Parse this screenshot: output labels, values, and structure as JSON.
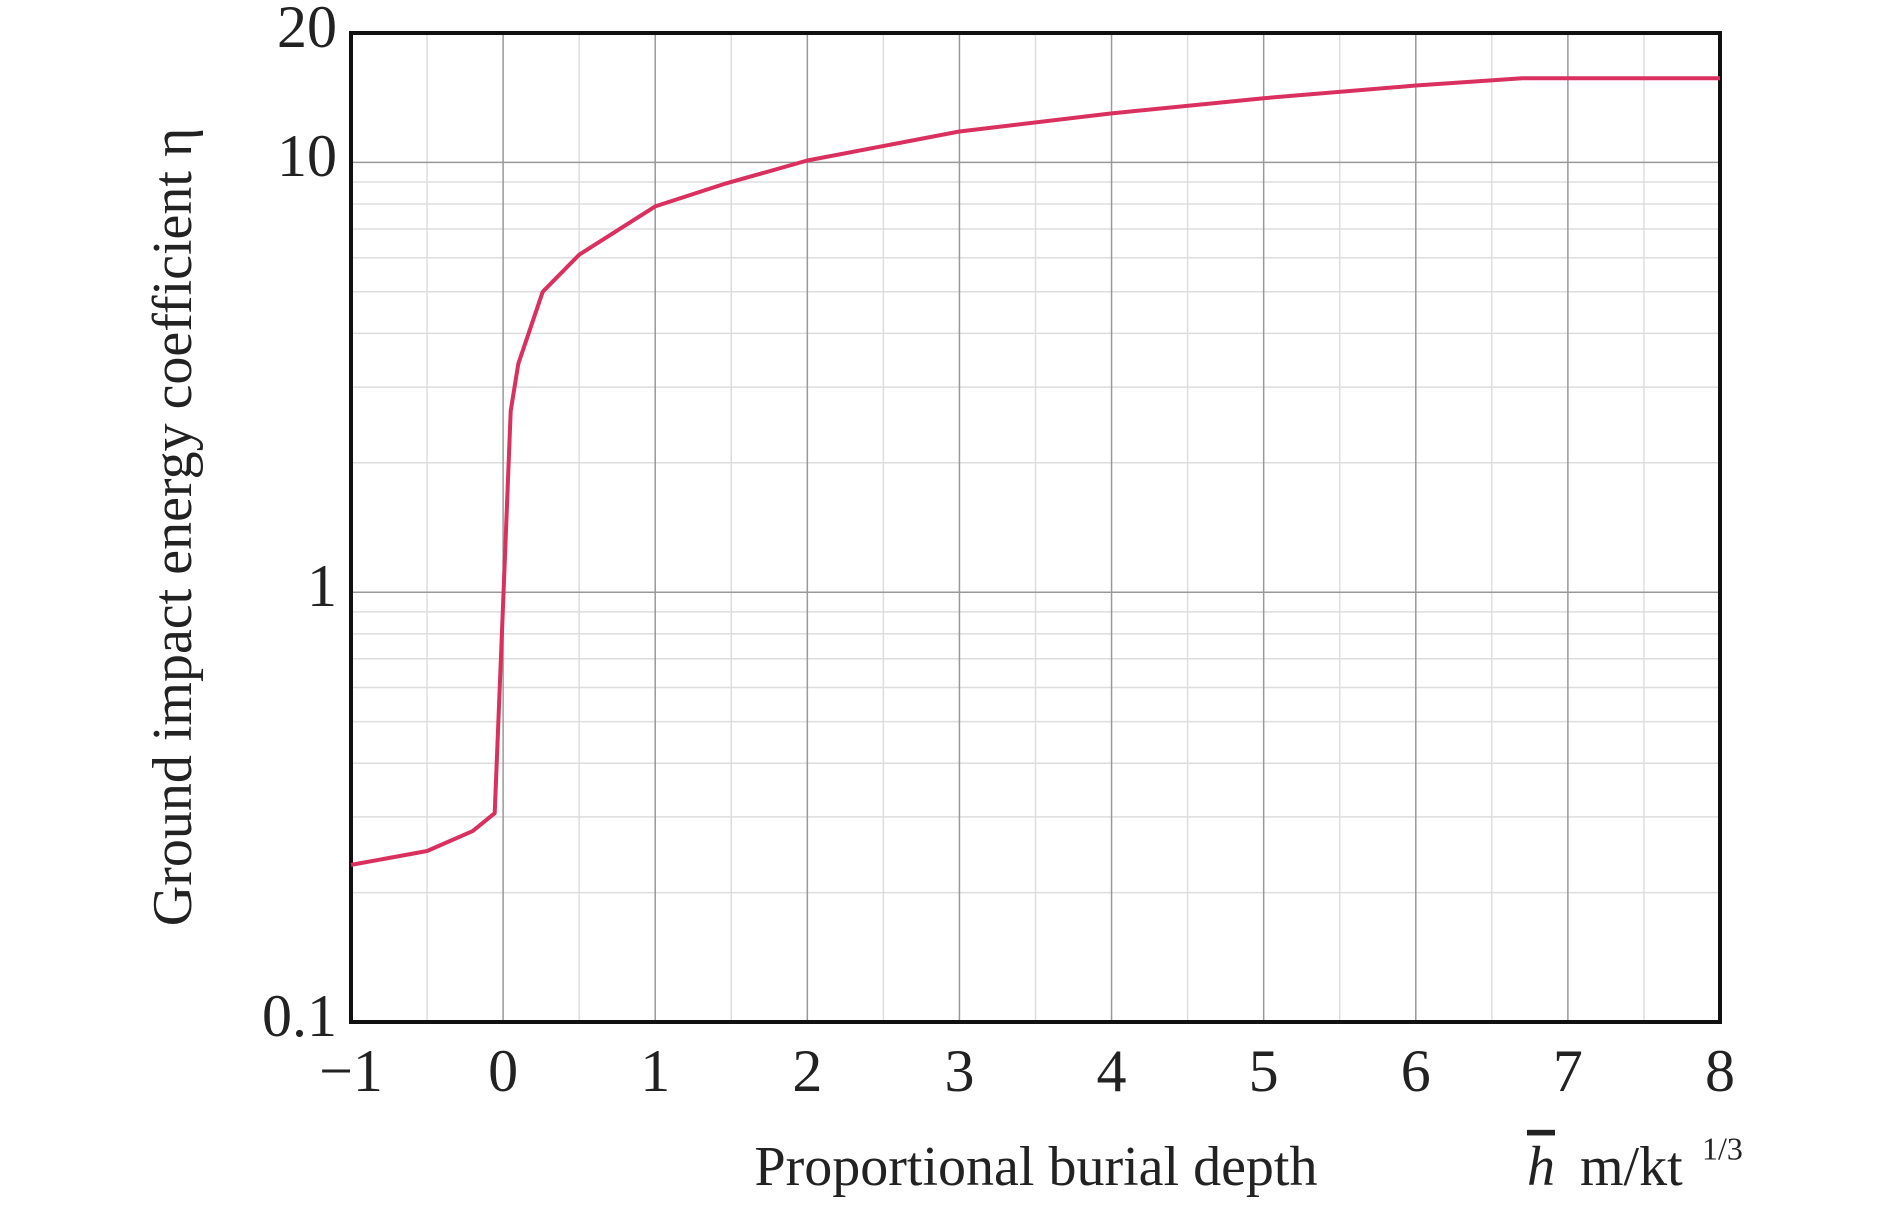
{
  "chart_data": {
    "type": "line",
    "ylabel": "Ground impact energy coefficient η",
    "xlabel": "Proportional burial depth",
    "xunit": {
      "symbol": "h",
      "unit": "m/kt",
      "exponent": "1/3"
    },
    "x": [
      -1,
      -0.5,
      -0.2,
      -0.055,
      0,
      0.05,
      0.1,
      0.26,
      0.5,
      1,
      1.45,
      2,
      3,
      4,
      5,
      6,
      6.7,
      7,
      8
    ],
    "values": [
      0.232,
      0.25,
      0.278,
      0.306,
      0.94,
      2.64,
      3.4,
      5.0,
      6.1,
      7.9,
      8.9,
      10.1,
      11.8,
      13.0,
      14.1,
      15.1,
      15.7,
      15.7,
      15.7
    ],
    "color": "#d9305f",
    "xlim": [
      -1,
      8
    ],
    "xticks": [
      {
        "value": -1,
        "label": "−1"
      },
      0,
      1,
      2,
      3,
      4,
      5,
      6,
      7,
      8
    ],
    "ylim": [
      0.1,
      20
    ],
    "yticks": [
      0.1,
      1,
      10,
      20
    ],
    "log_y": true,
    "grid": true,
    "minor_grid": true
  }
}
